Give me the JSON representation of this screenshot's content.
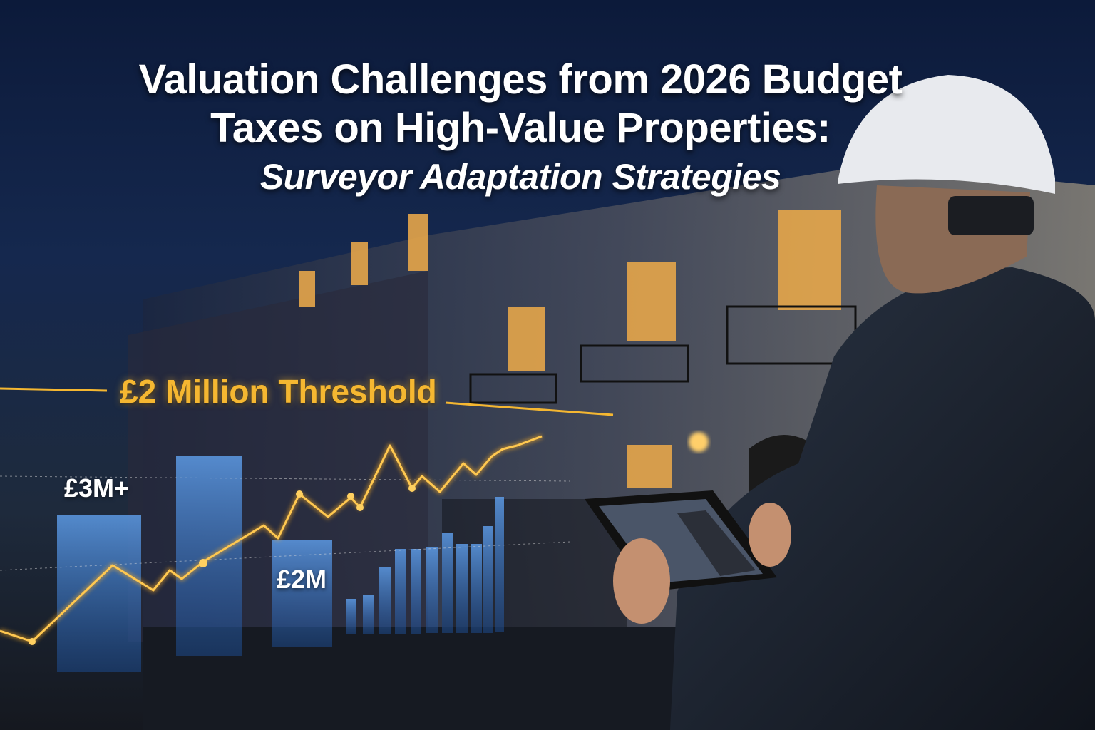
{
  "title": {
    "line1": "Valuation Challenges from 2026 Budget",
    "line2": "Taxes on High-Value Properties:",
    "subtitle": "Surveyor Adaptation Strategies"
  },
  "overlay": {
    "threshold_label": "£2 Million Threshold",
    "label_3m": "£3M+",
    "label_2m": "£2M"
  },
  "colors": {
    "accent_gold": "#f5b731",
    "bar_blue": "#3f7fd0",
    "background_navy": "#0c1a3a"
  }
}
